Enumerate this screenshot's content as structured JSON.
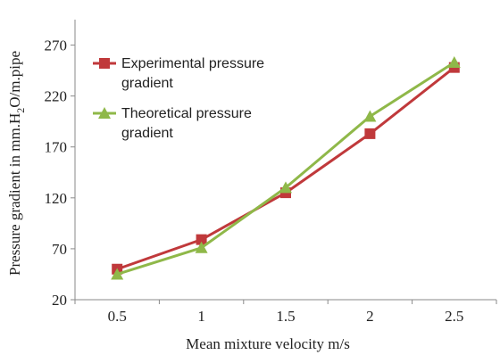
{
  "chart_data": {
    "type": "line",
    "x": [
      0.5,
      1,
      1.5,
      2,
      2.5
    ],
    "x_tick_labels": [
      "0.5",
      "1",
      "1.5",
      "2",
      "2.5"
    ],
    "y_ticks": [
      20,
      70,
      120,
      170,
      220,
      270
    ],
    "y_tick_labels": [
      "20",
      "70",
      "120",
      "170",
      "220",
      "270"
    ],
    "ylim": [
      20,
      295
    ],
    "xlabel": "Mean mixture velocity m/s",
    "ylabel": {
      "main": "Pressure gradient in mm.H",
      "sub": "2",
      "tail": "O/m.pipe"
    },
    "grid": false,
    "legend_position": "top-left",
    "series": [
      {
        "name_lines": [
          "Experimental pressure",
          "gradient"
        ],
        "marker": "square",
        "color": "#c0393b",
        "values": [
          50,
          79,
          125,
          183,
          248
        ]
      },
      {
        "name_lines": [
          "Theoretical pressure",
          "gradient"
        ],
        "marker": "triangle",
        "color": "#8fb849",
        "values": [
          45,
          71,
          130,
          200,
          253
        ]
      }
    ]
  }
}
